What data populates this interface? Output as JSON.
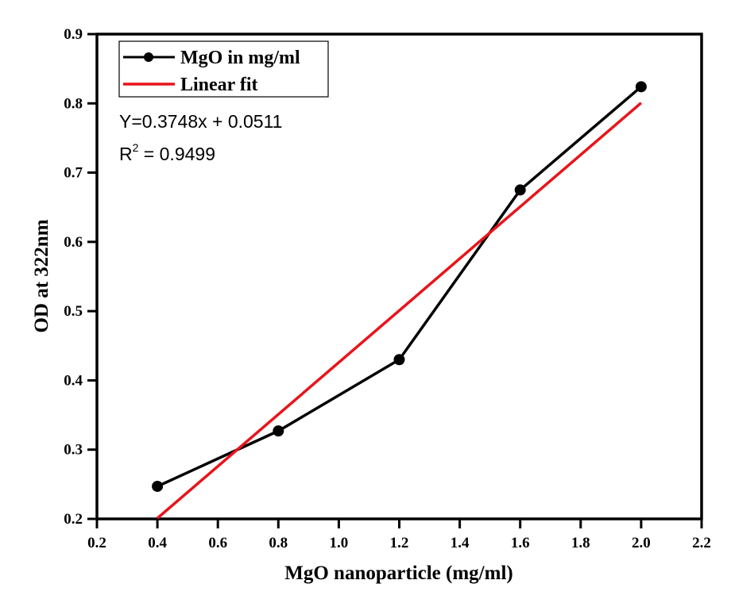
{
  "chart_data": {
    "type": "line",
    "title": "",
    "xlabel": "MgO nanoparticle (mg/ml)",
    "ylabel": "OD at 322nm",
    "xlim": [
      0.2,
      2.2
    ],
    "ylim": [
      0.2,
      0.9
    ],
    "xticks": [
      "0.2",
      "0.4",
      "0.6",
      "0.8",
      "1.0",
      "1.2",
      "1.4",
      "1.6",
      "1.8",
      "2.0",
      "2.2"
    ],
    "yticks": [
      "0.2",
      "0.3",
      "0.4",
      "0.5",
      "0.6",
      "0.7",
      "0.8",
      "0.9"
    ],
    "grid": false,
    "legend_position": "top-left",
    "series": [
      {
        "name": "MgO in mg/ml",
        "color": "#000000",
        "marker": "circle",
        "x": [
          0.4,
          0.8,
          1.2,
          1.6,
          2.0
        ],
        "y": [
          0.247,
          0.327,
          0.43,
          0.675,
          0.824
        ]
      },
      {
        "name": "Linear fit",
        "color": "#e8141b",
        "marker": "none",
        "x": [
          0.4,
          2.0
        ],
        "y": [
          0.201,
          0.8007
        ]
      }
    ],
    "annotations": {
      "equation": "Y=0.3748x + 0.0511",
      "r2_prefix": "R",
      "r2_sup": "2",
      "r2_value": " = 0.9499"
    }
  }
}
